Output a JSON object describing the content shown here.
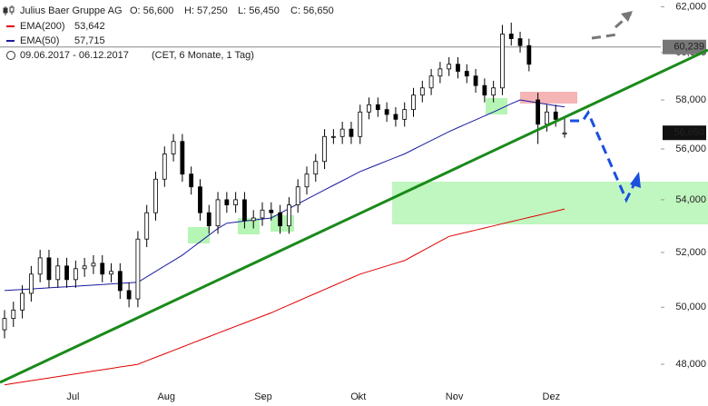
{
  "chart_data": {
    "type": "candlestick",
    "title": "Julius Baer Gruppe AG",
    "ohlc_labels": [
      "O: 56,600",
      "H: 57,250",
      "L: 56,450",
      "C: 56,650"
    ],
    "subtitle": "09.06.2017 - 06.12.2017",
    "period_note": "(CET, 6 Monate, 1 Tag)",
    "log_scale": true,
    "ylim": [
      46800,
      62300
    ],
    "yticks": [
      {
        "value": 48000,
        "label": "48,000"
      },
      {
        "value": 50000,
        "label": "50,000"
      },
      {
        "value": 52000,
        "label": "52,000"
      },
      {
        "value": 54000,
        "label": "54,000"
      },
      {
        "value": 56000,
        "label": "56,000"
      },
      {
        "value": 58000,
        "label": "58,000"
      },
      {
        "value": 60000,
        "label": "60,000"
      },
      {
        "value": 62000,
        "label": "62,000"
      }
    ],
    "xticks": [
      {
        "value": 7.7,
        "label": "Jul"
      },
      {
        "value": 18.2,
        "label": "Aug"
      },
      {
        "value": 29.1,
        "label": "Sep"
      },
      {
        "value": 39.8,
        "label": "Okt"
      },
      {
        "value": 50.6,
        "label": "Nov"
      },
      {
        "value": 61.5,
        "label": "Dez"
      }
    ],
    "up_color": "#ffffff",
    "down_color": "#000000",
    "open": [
      49200,
      49600,
      49900,
      50500,
      51200,
      51800,
      51000,
      51500,
      51000,
      51400,
      51500,
      51600,
      51200,
      51300,
      50600,
      50300,
      52500,
      53500,
      54800,
      55800,
      56300,
      55000,
      54500,
      53500,
      53000,
      54000,
      53800,
      54000,
      53200,
      53300,
      53600,
      53500,
      53000,
      53800,
      54500,
      55000,
      55500,
      56500,
      56500,
      56800,
      56500,
      57500,
      57800,
      57600,
      57400,
      57200,
      57600,
      58200,
      58500,
      59000,
      59300,
      59500,
      59200,
      59000,
      58600,
      58200,
      58500,
      60800,
      60600,
      60300,
      58000,
      57000,
      57500,
      56600
    ],
    "high": [
      49900,
      50200,
      50800,
      51500,
      52100,
      52100,
      51800,
      51800,
      51700,
      51800,
      51900,
      51900,
      51600,
      51600,
      50900,
      52800,
      53800,
      55100,
      56100,
      56600,
      56600,
      55300,
      54800,
      53800,
      54300,
      54300,
      54300,
      54300,
      53600,
      53900,
      53900,
      53800,
      54100,
      54800,
      55300,
      55800,
      56800,
      56800,
      57100,
      57100,
      57800,
      58100,
      58100,
      57900,
      57700,
      57900,
      58500,
      58800,
      59300,
      59600,
      59800,
      59800,
      59500,
      59300,
      58900,
      58800,
      61200,
      61300,
      60900,
      60600,
      58300,
      57800,
      57800,
      57250
    ],
    "low": [
      48900,
      49300,
      49600,
      50200,
      50900,
      50700,
      50700,
      50700,
      50700,
      51100,
      51200,
      50900,
      50900,
      50300,
      50000,
      50000,
      52200,
      53200,
      54500,
      55500,
      54700,
      54200,
      53200,
      52700,
      52700,
      53500,
      53500,
      52900,
      52900,
      53000,
      53200,
      52700,
      52700,
      53500,
      54200,
      54700,
      55200,
      56200,
      56200,
      56200,
      56200,
      57200,
      57300,
      57100,
      56900,
      56900,
      57300,
      57900,
      58200,
      58700,
      59000,
      58900,
      58700,
      58300,
      57900,
      57900,
      58200,
      60300,
      60000,
      59200,
      56200,
      56700,
      56900,
      56450
    ],
    "close": [
      49600,
      49900,
      50500,
      51200,
      51800,
      51000,
      51500,
      51000,
      51400,
      51500,
      51600,
      51200,
      51300,
      50600,
      50300,
      52500,
      53500,
      54800,
      55800,
      56300,
      55000,
      54500,
      53500,
      53000,
      54000,
      53800,
      54000,
      53200,
      53300,
      53600,
      53500,
      53000,
      53800,
      54500,
      55000,
      55500,
      56500,
      56500,
      56800,
      56500,
      57500,
      57800,
      57600,
      57400,
      57200,
      57600,
      58200,
      58500,
      59000,
      59300,
      59500,
      59200,
      59000,
      58600,
      58200,
      58500,
      60800,
      60600,
      60300,
      59500,
      57000,
      57500,
      57200,
      56650
    ],
    "series": [
      {
        "name": "EMA(200)",
        "last_label": "53,642",
        "color": "#e00000",
        "values": [
          47300,
          47347,
          47393,
          47440,
          47487,
          47533,
          47580,
          47627,
          47673,
          47720,
          47767,
          47813,
          47860,
          47907,
          47953,
          48000,
          48120,
          48240,
          48360,
          48480,
          48600,
          48720,
          48840,
          48960,
          49080,
          49200,
          49320,
          49440,
          49560,
          49680,
          49800,
          49940,
          50080,
          50220,
          50360,
          50500,
          50640,
          50780,
          50920,
          51060,
          51200,
          51300,
          51400,
          51500,
          51600,
          51700,
          51880,
          52060,
          52240,
          52420,
          52600,
          52680,
          52760,
          52840,
          52920,
          53000,
          53080,
          53160,
          53240,
          53320,
          53400,
          53480,
          53560,
          53642
        ]
      },
      {
        "name": "EMA(50)",
        "last_label": "57,715",
        "color": "#1a1aa0",
        "values": [
          50600,
          50620,
          50640,
          50660,
          50680,
          50700,
          50720,
          50740,
          50760,
          50780,
          50800,
          50820,
          50840,
          50860,
          50880,
          50900,
          51100,
          51300,
          51500,
          51700,
          51900,
          52150,
          52400,
          52650,
          52900,
          53100,
          53140,
          53180,
          53220,
          53260,
          53300,
          53480,
          53660,
          53840,
          54020,
          54200,
          54380,
          54560,
          54740,
          54920,
          55100,
          55240,
          55380,
          55520,
          55660,
          55800,
          55980,
          56160,
          56340,
          56520,
          56700,
          56860,
          57020,
          57180,
          57340,
          57500,
          57670,
          57840,
          58000,
          57940,
          57880,
          57820,
          57760,
          57715
        ]
      }
    ],
    "reference_line": {
      "value": 60239,
      "label": "60,239"
    },
    "last_price": {
      "value": 56650,
      "label": "56,650"
    }
  }
}
